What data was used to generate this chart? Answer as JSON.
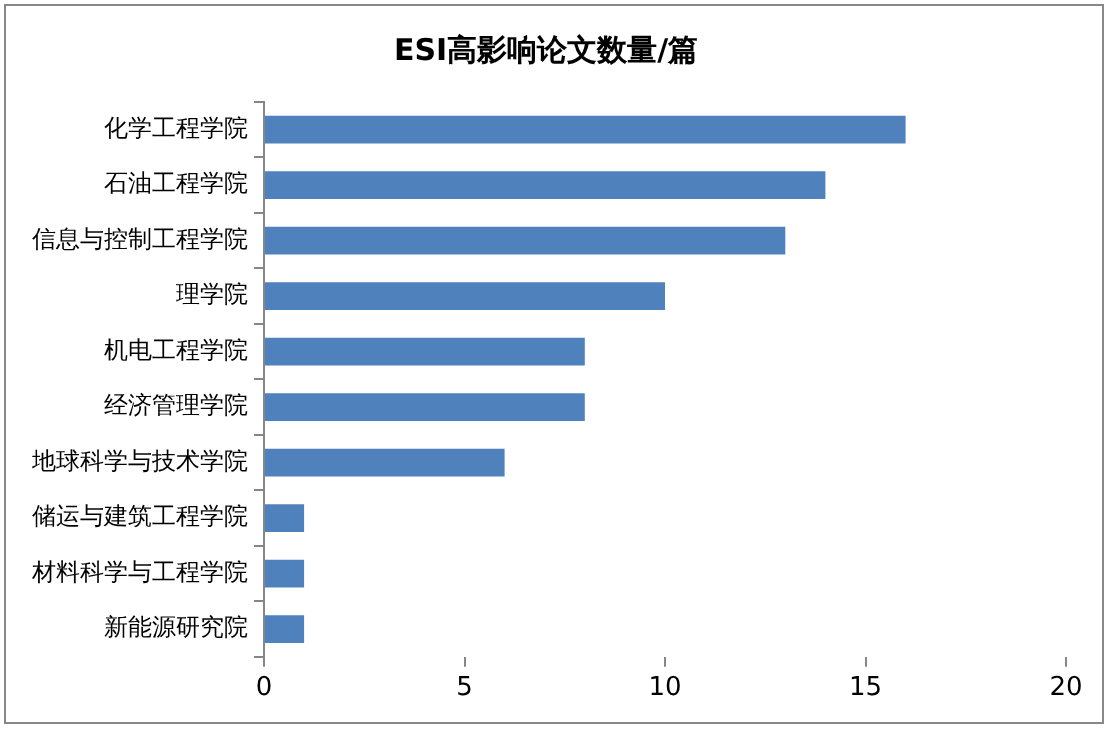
{
  "chart_data": {
    "type": "bar",
    "orientation": "horizontal",
    "title": "ESI高影响论文数量/篇",
    "categories": [
      "化学工程学院",
      "石油工程学院",
      "信息与控制工程学院",
      "理学院",
      "机电工程学院",
      "经济管理学院",
      "地球科学与技术学院",
      "储运与建筑工程学院",
      "材料科学与工程学院",
      "新能源研究院"
    ],
    "values": [
      16,
      14,
      13,
      10,
      8,
      8,
      6,
      1,
      1,
      1
    ],
    "color": "#4f81bd",
    "xlim": [
      0,
      20
    ],
    "xticks": [
      0,
      5,
      10,
      15,
      20
    ],
    "grid": false,
    "legend": false
  }
}
